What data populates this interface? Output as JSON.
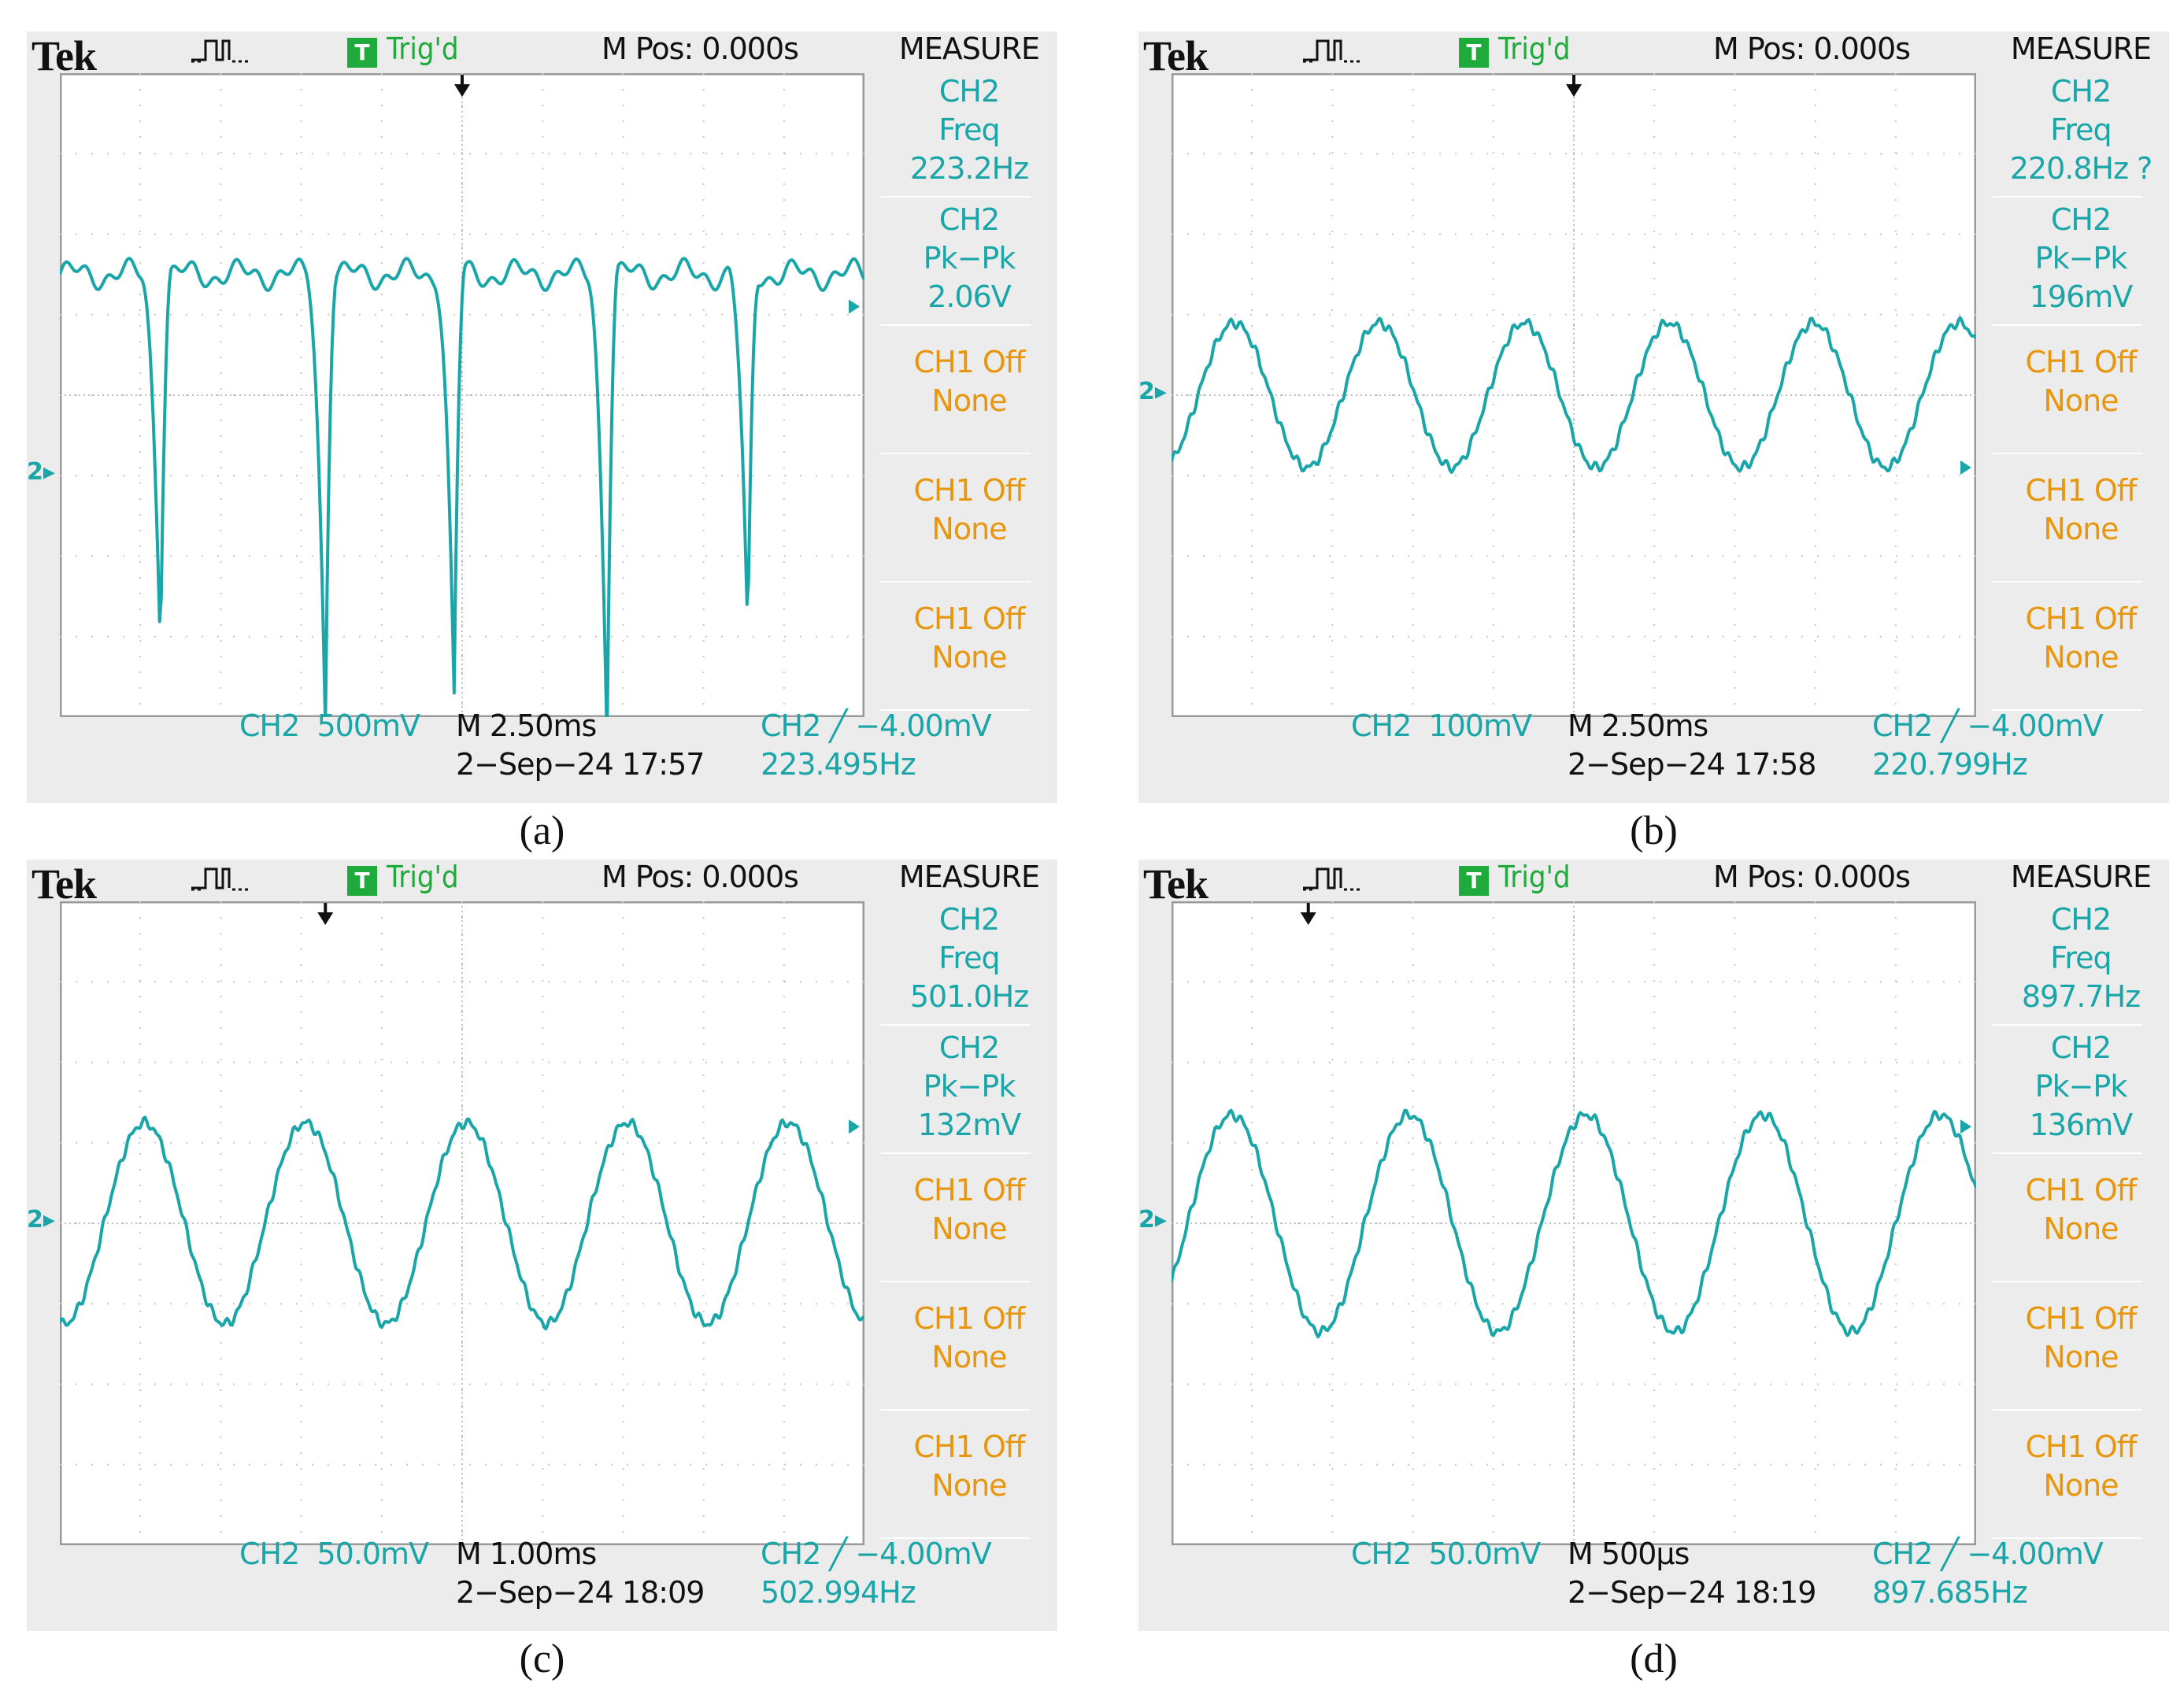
{
  "colors": {
    "trace": "#1aa6a8",
    "measure_cyan": "#1aa6a8",
    "measure_orange": "#e8960c",
    "trig_green": "#1faa3c",
    "panel_bg": "#ececec",
    "grid": "#bfbfbf"
  },
  "common": {
    "brand": "Tek",
    "trig_icon": "T",
    "trig_status": "Trig'd",
    "mpos": "M Pos: 0.000s",
    "measure": "MEASURE",
    "acq_icon": "acquisition-pulse-icon",
    "ch2_marker": "2"
  },
  "panels": [
    {
      "caption": "(a)",
      "trigger_pos_div": 5,
      "level_div": -1,
      "right_marker_y_div": 1.1,
      "measures": [
        {
          "kind": "cyan",
          "lines": [
            "CH2",
            "Freq",
            "223.2Hz"
          ]
        },
        {
          "kind": "cyan",
          "lines": [
            "CH2",
            "Pk−Pk",
            "2.06V"
          ]
        },
        {
          "kind": "orange",
          "lines": [
            "CH1 Off",
            "None"
          ]
        },
        {
          "kind": "orange",
          "lines": [
            "CH1 Off",
            "None"
          ]
        },
        {
          "kind": "orange",
          "lines": [
            "CH1 Off",
            "None"
          ]
        }
      ],
      "volts": "CH2  500mV",
      "time": "M 2.50ms",
      "date": "2−Sep−24 17:57",
      "trig": "CH2 ╱ −4.00mV",
      "freq": "223.495Hz"
    },
    {
      "caption": "(b)",
      "trigger_pos_div": 5,
      "level_div": 0,
      "right_marker_y_div": -0.9,
      "measures": [
        {
          "kind": "cyan",
          "lines": [
            "CH2",
            "Freq",
            "220.8Hz ?"
          ]
        },
        {
          "kind": "cyan",
          "lines": [
            "CH2",
            "Pk−Pk",
            "196mV"
          ]
        },
        {
          "kind": "orange",
          "lines": [
            "CH1 Off",
            "None"
          ]
        },
        {
          "kind": "orange",
          "lines": [
            "CH1 Off",
            "None"
          ]
        },
        {
          "kind": "orange",
          "lines": [
            "CH1 Off",
            "None"
          ]
        }
      ],
      "volts": "CH2  100mV",
      "time": "M 2.50ms",
      "date": "2−Sep−24 17:58",
      "trig": "CH2 ╱ −4.00mV",
      "freq": "220.799Hz"
    },
    {
      "caption": "(c)",
      "trigger_pos_div": 3.3,
      "level_div": 0,
      "right_marker_y_div": 1.2,
      "measures": [
        {
          "kind": "cyan",
          "lines": [
            "CH2",
            "Freq",
            "501.0Hz"
          ]
        },
        {
          "kind": "cyan",
          "lines": [
            "CH2",
            "Pk−Pk",
            "132mV"
          ]
        },
        {
          "kind": "orange",
          "lines": [
            "CH1 Off",
            "None"
          ]
        },
        {
          "kind": "orange",
          "lines": [
            "CH1 Off",
            "None"
          ]
        },
        {
          "kind": "orange",
          "lines": [
            "CH1 Off",
            "None"
          ]
        }
      ],
      "volts": "CH2  50.0mV",
      "time": "M 1.00ms",
      "date": "2−Sep−24 18:09",
      "trig": "CH2 ╱ −4.00mV",
      "freq": "502.994Hz"
    },
    {
      "caption": "(d)",
      "trigger_pos_div": 1.7,
      "level_div": 0,
      "right_marker_y_div": 1.2,
      "measures": [
        {
          "kind": "cyan",
          "lines": [
            "CH2",
            "Freq",
            "897.7Hz"
          ]
        },
        {
          "kind": "cyan",
          "lines": [
            "CH2",
            "Pk−Pk",
            "136mV"
          ]
        },
        {
          "kind": "orange",
          "lines": [
            "CH1 Off",
            "None"
          ]
        },
        {
          "kind": "orange",
          "lines": [
            "CH1 Off",
            "None"
          ]
        },
        {
          "kind": "orange",
          "lines": [
            "CH1 Off",
            "None"
          ]
        }
      ],
      "volts": "CH2  50.0mV",
      "time": "M 500μs",
      "date": "2−Sep−24 18:19",
      "trig": "CH2 ╱ −4.00mV",
      "freq": "897.685Hz"
    }
  ]
}
